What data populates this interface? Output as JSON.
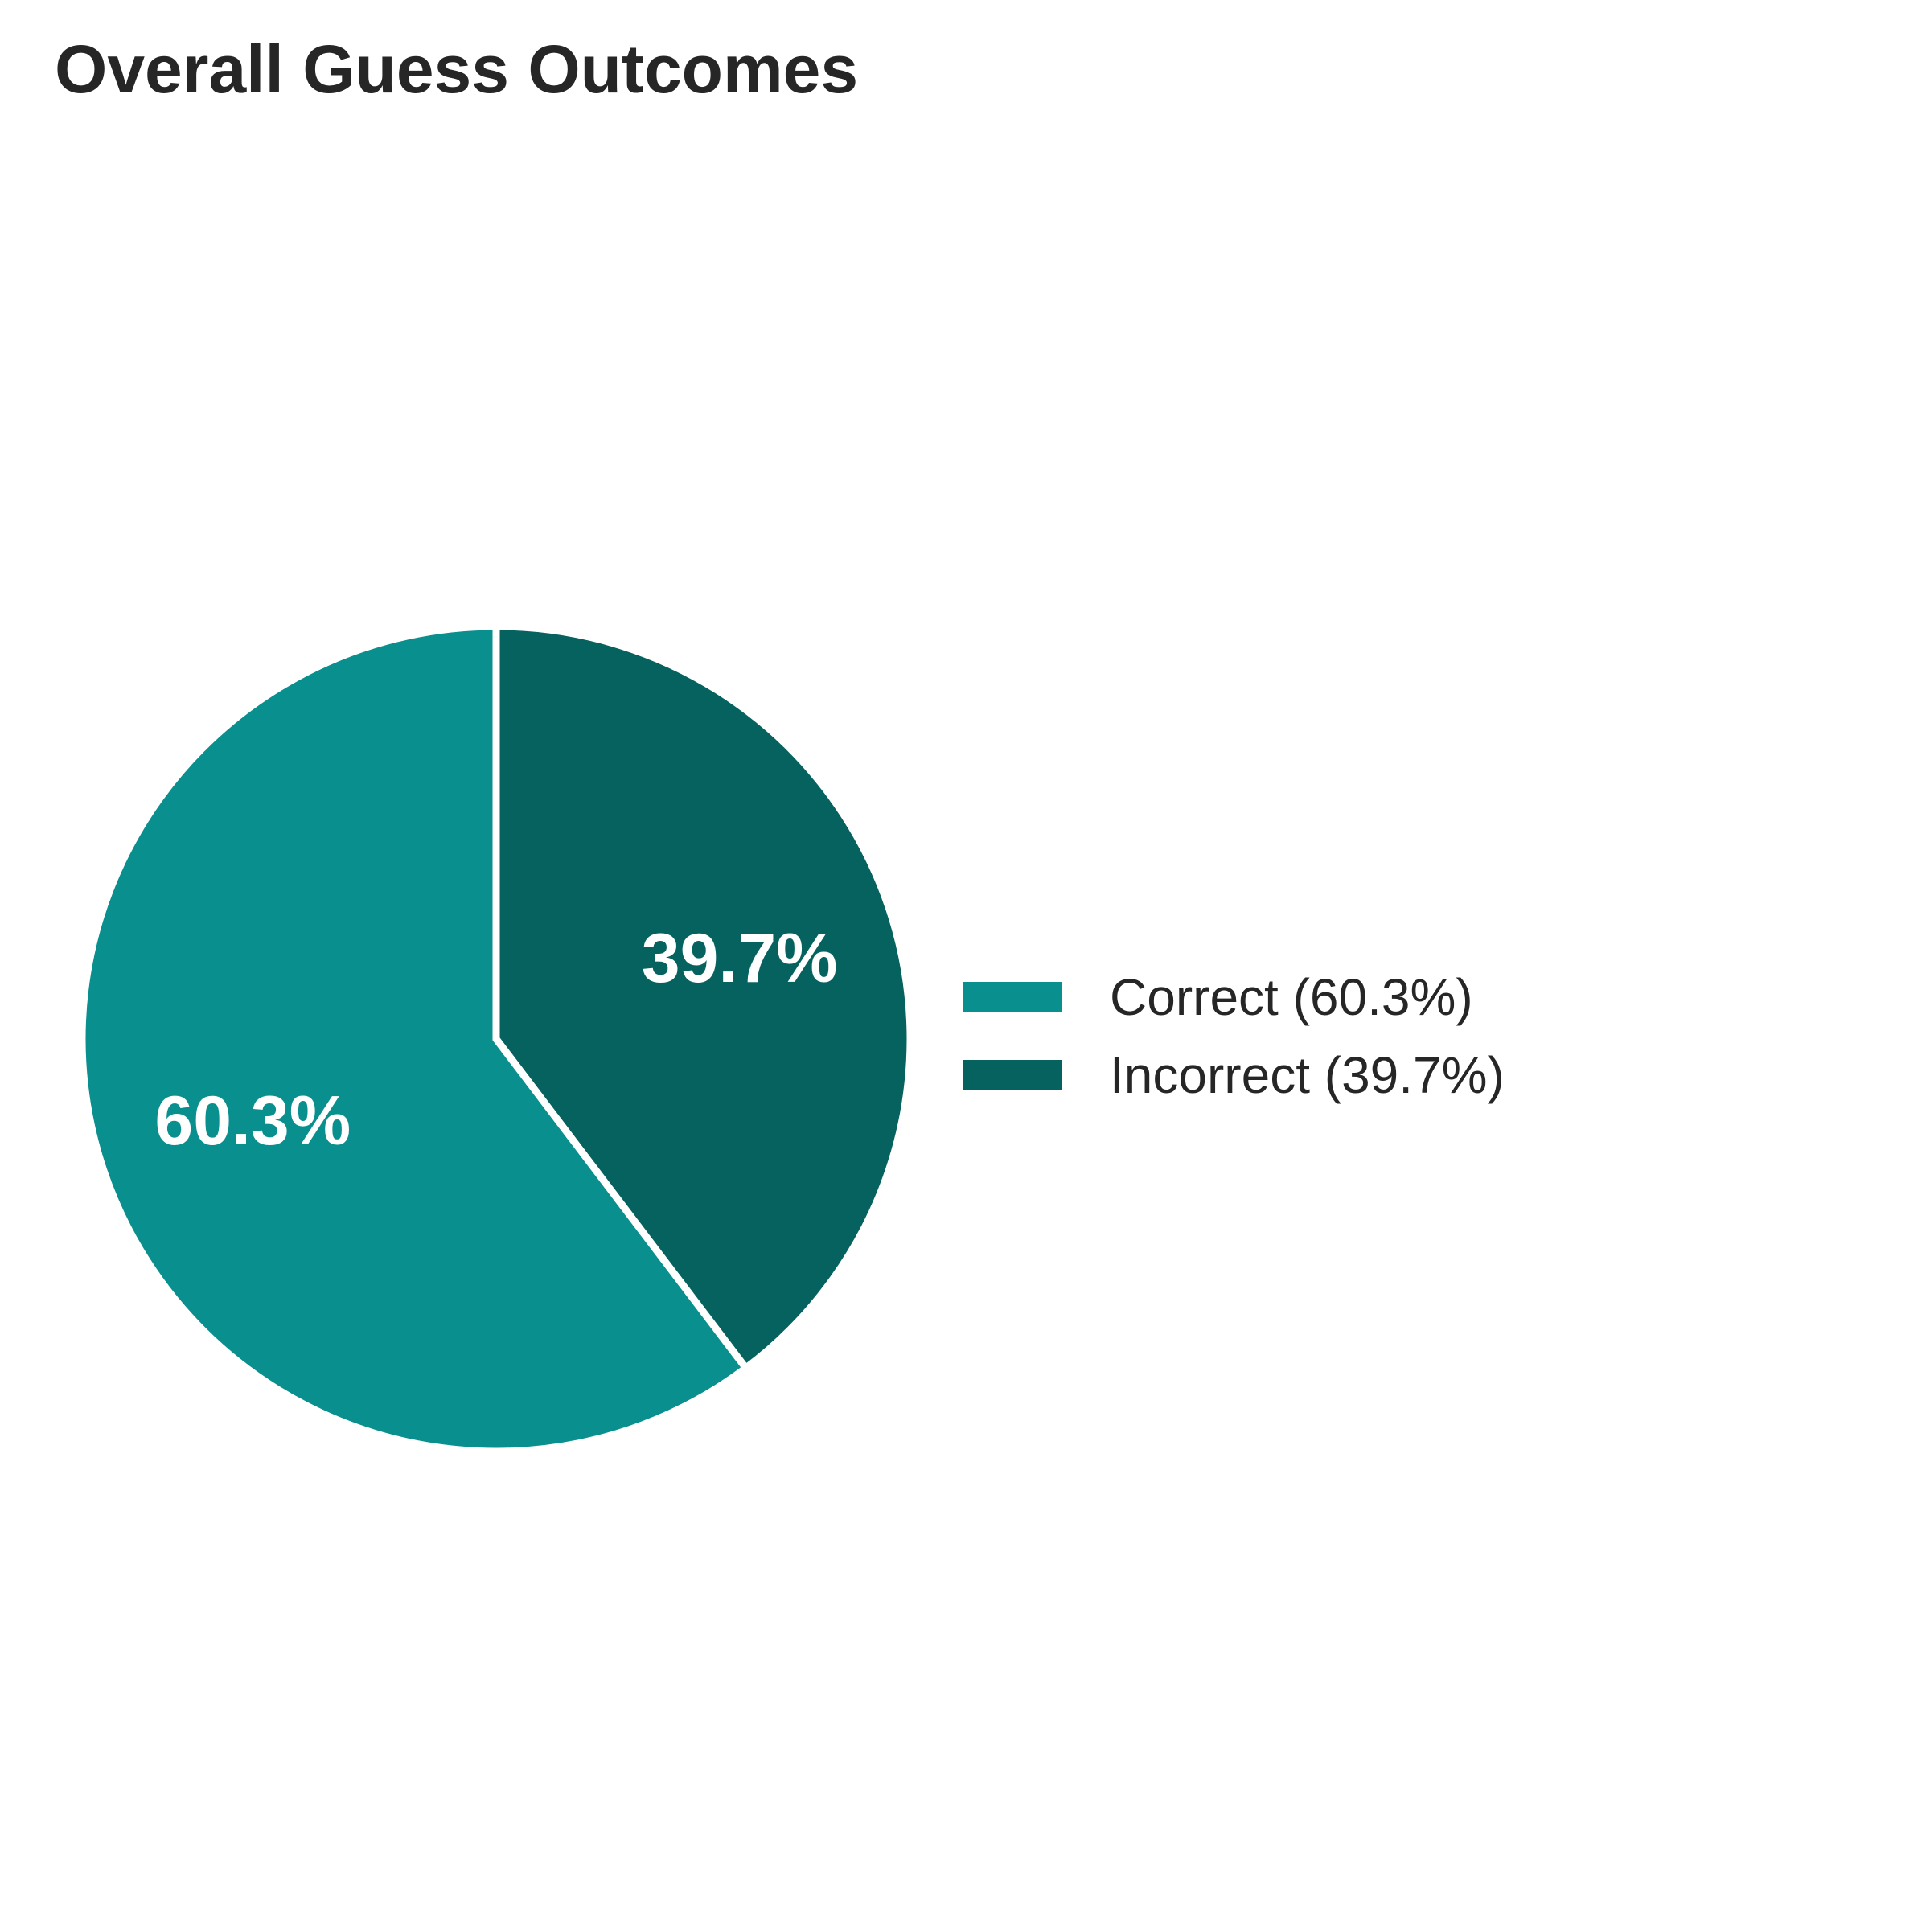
{
  "colors": {
    "background": "#ffffff",
    "correct": "#0a8f8f",
    "incorrect": "#05625f",
    "slice_border": "#ffffff",
    "label_text": "#ffffff",
    "title_text": "#262626",
    "legend_text": "#262626"
  },
  "chart_data": {
    "type": "pie",
    "title": "Overall Guess Outcomes",
    "slices": [
      {
        "name": "Correct",
        "value": 60.3,
        "label": "60.3%",
        "legend": "Correct (60.3%)",
        "color": "#0a8f8f"
      },
      {
        "name": "Incorrect",
        "value": 39.7,
        "label": "39.7%",
        "legend": "Incorrect (39.7%)",
        "color": "#05625f"
      }
    ],
    "start_angle": "top (12 o'clock)",
    "direction": "clockwise, Incorrect first",
    "legend_position": "right",
    "grid": false
  }
}
